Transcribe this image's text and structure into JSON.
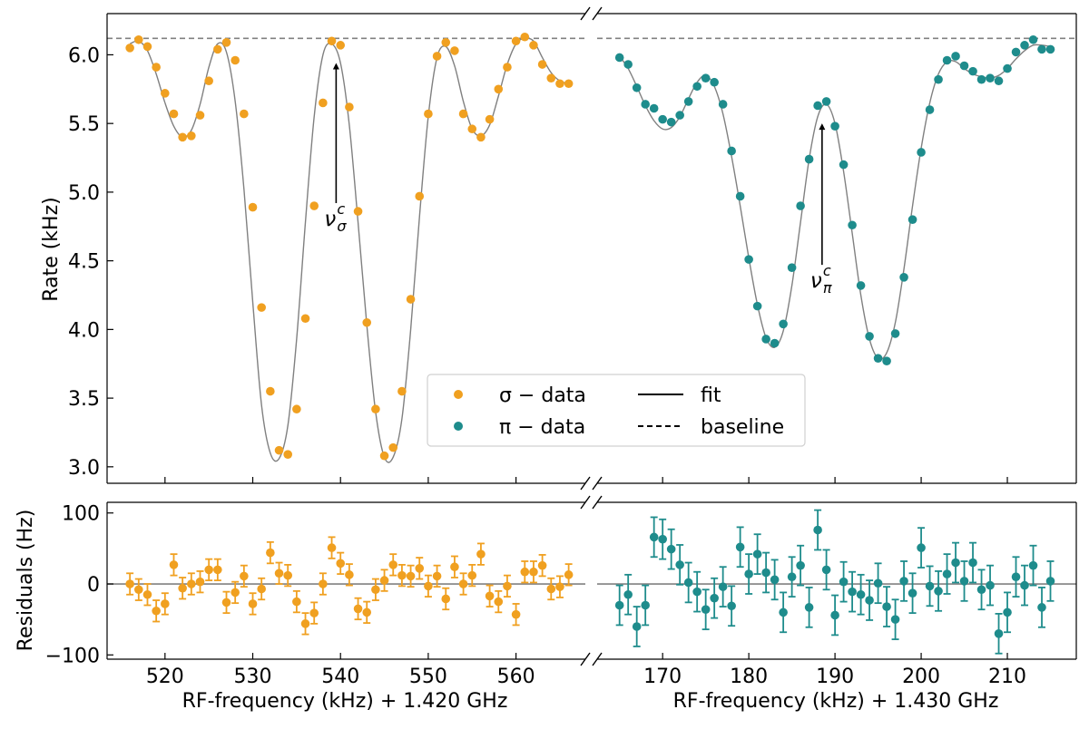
{
  "colors": {
    "sigma": "#f0a020",
    "pi": "#1e8c8c",
    "fit": "#808080",
    "baseline": "#808080"
  },
  "chart_data": {
    "type": "scatter",
    "shared_ylabel_top": "Rate (kHz)",
    "shared_ylabel_bottom": "Residuals (Hz)",
    "baseline_value": 6.12,
    "legend": {
      "placement": "lower-center",
      "entries": [
        {
          "label": "σ − data",
          "style": "marker",
          "color": "#f0a020"
        },
        {
          "label": "π − data",
          "style": "marker",
          "color": "#1e8c8c"
        },
        {
          "label": "fit",
          "style": "solid-line",
          "color": "#000000"
        },
        {
          "label": "baseline",
          "style": "dashed-line",
          "color": "#000000"
        }
      ]
    },
    "panels": [
      {
        "name": "sigma",
        "xlabel": "RF-frequency (kHz) + 1.420 GHz",
        "xlim": [
          513.4,
          567.9
        ],
        "xticks": [
          "520",
          "530",
          "540",
          "550",
          "560"
        ],
        "xtick_values": [
          520,
          530,
          540,
          550,
          560
        ],
        "ylim_top": [
          2.88,
          6.3
        ],
        "yticks_top": [
          "3.0",
          "3.5",
          "4.0",
          "4.5",
          "5.0",
          "5.5",
          "6.0"
        ],
        "ytick_values_top": [
          3.0,
          3.5,
          4.0,
          4.5,
          5.0,
          5.5,
          6.0
        ],
        "ylim_bottom": [
          -106,
          115
        ],
        "yticks_bottom": [
          "−100",
          "0",
          "100"
        ],
        "ytick_values_bottom": [
          -100,
          0,
          100
        ],
        "x": [
          516,
          517,
          518,
          519,
          520,
          521,
          522,
          523,
          524,
          525,
          526,
          527,
          528,
          529,
          530,
          531,
          532,
          533,
          534,
          535,
          536,
          537,
          538,
          539,
          540,
          541,
          542,
          543,
          544,
          545,
          546,
          547,
          548,
          549,
          550,
          551,
          552,
          553,
          554,
          555,
          556,
          557,
          558,
          559,
          560,
          561,
          562,
          563,
          564,
          565,
          566
        ],
        "rate": [
          6.05,
          6.11,
          6.06,
          5.91,
          5.72,
          5.57,
          5.4,
          5.41,
          5.56,
          5.81,
          6.04,
          6.09,
          5.96,
          5.57,
          4.89,
          4.16,
          3.55,
          3.12,
          3.09,
          3.42,
          4.08,
          4.9,
          5.65,
          6.1,
          6.07,
          5.62,
          4.86,
          4.05,
          3.42,
          3.08,
          3.14,
          3.55,
          4.22,
          4.97,
          5.57,
          5.99,
          6.09,
          6.03,
          5.57,
          5.46,
          5.4,
          5.53,
          5.75,
          5.91,
          6.1,
          6.13,
          6.07,
          5.93,
          5.83,
          5.79,
          5.79
        ],
        "fit_x": [
          516,
          517,
          518,
          519,
          520,
          521,
          522,
          523,
          524,
          525,
          526,
          527,
          528,
          529,
          530,
          531,
          532,
          533,
          534,
          535,
          536,
          537,
          538,
          539,
          540,
          541,
          542,
          543,
          544,
          545,
          546,
          547,
          548,
          549,
          550,
          551,
          552,
          553,
          554,
          555,
          556,
          557,
          558,
          559,
          560,
          561,
          562,
          563,
          564,
          565,
          566
        ],
        "fit_y": [
          6.08,
          6.1,
          6.03,
          5.86,
          5.65,
          5.48,
          5.4,
          5.45,
          5.64,
          5.91,
          6.08,
          6.02,
          5.66,
          5.02,
          4.2,
          3.45,
          3.1,
          3.06,
          3.3,
          3.93,
          4.78,
          5.55,
          6.0,
          6.08,
          5.94,
          5.49,
          4.78,
          4.03,
          3.4,
          3.07,
          3.07,
          3.35,
          4.0,
          4.82,
          5.55,
          5.98,
          6.06,
          5.92,
          5.66,
          5.46,
          5.41,
          5.49,
          5.7,
          5.93,
          6.08,
          6.12,
          6.1,
          5.98,
          5.87,
          5.81,
          5.79
        ],
        "residual": [
          0,
          -8,
          -15,
          -38,
          -28,
          27,
          -6,
          0,
          3,
          20,
          20,
          -26,
          -12,
          11,
          -28,
          -7,
          44,
          15,
          12,
          -25,
          -56,
          -41,
          0,
          51,
          29,
          13,
          -35,
          -40,
          -8,
          5,
          27,
          12,
          11,
          22,
          -3,
          11,
          -21,
          24,
          0,
          12,
          42,
          -17,
          -25,
          -3,
          -43,
          17,
          17,
          26,
          -7,
          -4,
          13
        ],
        "residual_err": 15,
        "annotation": {
          "label": "ν",
          "sub": "σ",
          "sup": "c",
          "x": 539.5,
          "arrow_from": 4.92,
          "arrow_to": 5.94
        }
      },
      {
        "name": "pi",
        "xlabel": "RF-frequency (kHz) + 1.430 GHz",
        "xlim": [
          162.4,
          218.0
        ],
        "xticks": [
          "170",
          "180",
          "190",
          "200",
          "210"
        ],
        "xtick_values": [
          170,
          180,
          190,
          200,
          210
        ],
        "x": [
          165,
          166,
          167,
          168,
          169,
          170,
          171,
          172,
          173,
          174,
          175,
          176,
          177,
          178,
          179,
          180,
          181,
          182,
          183,
          184,
          185,
          186,
          187,
          188,
          189,
          190,
          191,
          192,
          193,
          194,
          195,
          196,
          197,
          198,
          199,
          200,
          201,
          202,
          203,
          204,
          205,
          206,
          207,
          208,
          209,
          210,
          211,
          212,
          213,
          214,
          215
        ],
        "rate": [
          5.98,
          5.93,
          5.76,
          5.64,
          5.61,
          5.53,
          5.51,
          5.56,
          5.66,
          5.77,
          5.83,
          5.8,
          5.64,
          5.3,
          4.97,
          4.51,
          4.17,
          3.93,
          3.9,
          4.04,
          4.45,
          4.9,
          5.24,
          5.63,
          5.66,
          5.48,
          5.2,
          4.76,
          4.32,
          3.95,
          3.79,
          3.77,
          3.97,
          4.38,
          4.8,
          5.29,
          5.6,
          5.82,
          5.96,
          5.99,
          5.92,
          5.88,
          5.82,
          5.83,
          5.81,
          5.9,
          6.02,
          6.07,
          6.11,
          6.04,
          6.04
        ],
        "fit_x": [
          165,
          166,
          167,
          168,
          169,
          170,
          171,
          172,
          173,
          174,
          175,
          176,
          177,
          178,
          179,
          180,
          181,
          182,
          183,
          184,
          185,
          186,
          187,
          188,
          189,
          190,
          191,
          192,
          193,
          194,
          195,
          196,
          197,
          198,
          199,
          200,
          201,
          202,
          203,
          204,
          205,
          206,
          207,
          208,
          209,
          210,
          211,
          212,
          213,
          214,
          215
        ],
        "fit_y": [
          5.99,
          5.9,
          5.77,
          5.63,
          5.52,
          5.46,
          5.47,
          5.55,
          5.68,
          5.8,
          5.85,
          5.77,
          5.57,
          5.26,
          4.9,
          4.52,
          4.18,
          3.94,
          3.87,
          3.99,
          4.32,
          4.78,
          5.24,
          5.55,
          5.64,
          5.5,
          5.15,
          4.7,
          4.25,
          3.93,
          3.79,
          3.83,
          4.05,
          4.44,
          4.9,
          5.32,
          5.65,
          5.86,
          5.95,
          5.95,
          5.9,
          5.86,
          5.84,
          5.83,
          5.85,
          5.9,
          5.97,
          6.03,
          6.07,
          6.07,
          6.06
        ],
        "residual": [
          -30,
          -15,
          -60,
          -30,
          66,
          63,
          49,
          27,
          2,
          -11,
          -36,
          -20,
          -4,
          -31,
          52,
          14,
          42,
          16,
          6,
          -40,
          10,
          26,
          -33,
          76,
          20,
          -44,
          3,
          -11,
          -15,
          -23,
          1,
          -32,
          -50,
          4,
          -13,
          51,
          -3,
          -10,
          14,
          30,
          4,
          30,
          -8,
          -2,
          -70,
          -40,
          10,
          -2,
          26,
          -33,
          4
        ],
        "residual_err": 28,
        "annotation": {
          "label": "ν",
          "sub": "π",
          "sup": "c",
          "x": 188.5,
          "arrow_from": 4.47,
          "arrow_to": 5.5
        }
      }
    ]
  }
}
